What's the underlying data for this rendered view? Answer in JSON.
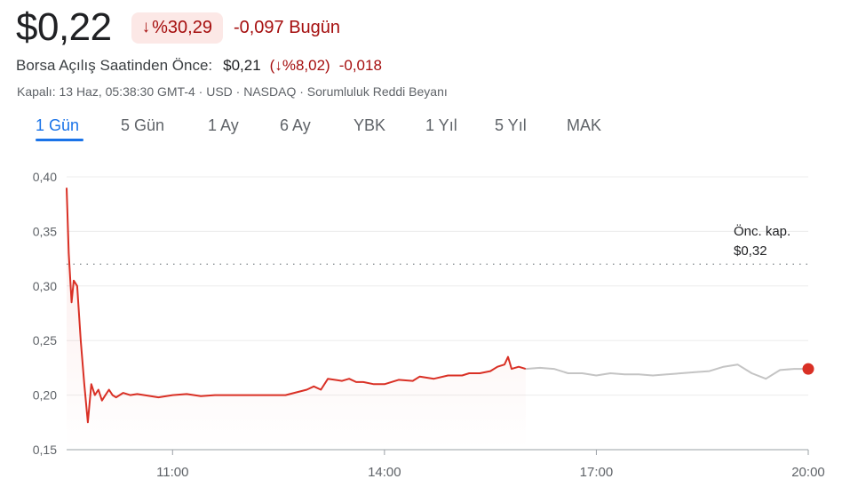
{
  "header": {
    "price": "$0,22",
    "change_arrow": "↓",
    "change_pct": "%30,29",
    "change_abs": "-0,097 Bugün",
    "premarket_label": "Borsa Açılış Saatinden Önce:",
    "premarket_price": "$0,21",
    "premarket_pct": "(↓%8,02)",
    "premarket_abs": "-0,018",
    "meta": "Kapalı: 13 Haz, 05:38:30 GMT-4 · USD · NASDAQ · Sorumluluk Reddi Beyanı"
  },
  "tabs": [
    {
      "label": "1 Gün",
      "active": true
    },
    {
      "label": "5 Gün",
      "active": false
    },
    {
      "label": "1 Ay",
      "active": false
    },
    {
      "label": "6 Ay",
      "active": false
    },
    {
      "label": "YBK",
      "active": false
    },
    {
      "label": "1 Yıl",
      "active": false
    },
    {
      "label": "5 Yıl",
      "active": false
    },
    {
      "label": "MAK",
      "active": false
    }
  ],
  "colors": {
    "down": "#d93025",
    "after_hours": "#c4c4c4",
    "grid": "#ececec",
    "accent": "#1a73e8"
  },
  "chart_data": {
    "type": "line",
    "title": "",
    "xlabel": "",
    "ylabel": "",
    "ylim": [
      0.15,
      0.4
    ],
    "x_ticks": [
      11,
      14,
      17,
      20
    ],
    "x_tick_labels": [
      "11:00",
      "14:00",
      "17:00",
      "20:00"
    ],
    "y_ticks": [
      0.15,
      0.2,
      0.25,
      0.3,
      0.35,
      0.4
    ],
    "y_tick_labels": [
      "0,15",
      "0,20",
      "0,25",
      "0,30",
      "0,35",
      "0,40"
    ],
    "grid": true,
    "reference_line": {
      "value": 0.32,
      "label_line1": "Önc. kap.",
      "label_line2": "$0,32"
    },
    "series": [
      {
        "segment": "regular",
        "color": "#d93025",
        "x": [
          9.5,
          9.53,
          9.57,
          9.6,
          9.65,
          9.7,
          9.75,
          9.8,
          9.85,
          9.9,
          9.95,
          10.0,
          10.05,
          10.1,
          10.15,
          10.2,
          10.3,
          10.4,
          10.5,
          10.6,
          10.8,
          11.0,
          11.2,
          11.4,
          11.6,
          11.8,
          12.0,
          12.3,
          12.6,
          12.9,
          13.0,
          13.1,
          13.2,
          13.4,
          13.5,
          13.6,
          13.7,
          13.85,
          14.0,
          14.2,
          14.4,
          14.5,
          14.7,
          14.9,
          15.1,
          15.2,
          15.35,
          15.5,
          15.6,
          15.7,
          15.75,
          15.8,
          15.9,
          16.0
        ],
        "y": [
          0.39,
          0.33,
          0.285,
          0.305,
          0.3,
          0.25,
          0.21,
          0.175,
          0.21,
          0.2,
          0.205,
          0.195,
          0.2,
          0.205,
          0.2,
          0.198,
          0.202,
          0.2,
          0.201,
          0.2,
          0.198,
          0.2,
          0.201,
          0.199,
          0.2,
          0.2,
          0.2,
          0.2,
          0.2,
          0.205,
          0.208,
          0.205,
          0.215,
          0.213,
          0.215,
          0.212,
          0.212,
          0.21,
          0.21,
          0.214,
          0.213,
          0.217,
          0.215,
          0.218,
          0.218,
          0.22,
          0.22,
          0.222,
          0.226,
          0.228,
          0.235,
          0.224,
          0.226,
          0.224
        ]
      },
      {
        "segment": "after_hours",
        "color": "#c4c4c4",
        "x": [
          16.0,
          16.2,
          16.4,
          16.6,
          16.8,
          17.0,
          17.2,
          17.4,
          17.6,
          17.8,
          18.0,
          18.2,
          18.4,
          18.6,
          18.8,
          19.0,
          19.2,
          19.4,
          19.6,
          19.8,
          20.0
        ],
        "y": [
          0.224,
          0.225,
          0.224,
          0.22,
          0.22,
          0.218,
          0.22,
          0.219,
          0.219,
          0.218,
          0.219,
          0.22,
          0.221,
          0.222,
          0.226,
          0.228,
          0.22,
          0.215,
          0.223,
          0.224,
          0.224
        ]
      }
    ],
    "last_point": {
      "x": 20.0,
      "y": 0.224
    }
  }
}
